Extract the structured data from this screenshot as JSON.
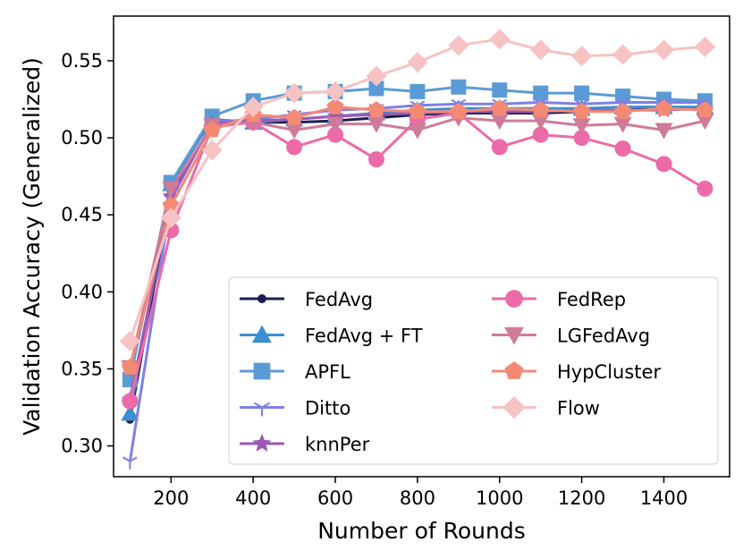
{
  "chart_data": {
    "type": "line",
    "title": "",
    "xlabel": "Number of Rounds",
    "ylabel": "Validation Accuracy (Generalized)",
    "xlim": [
      60,
      1560
    ],
    "ylim": [
      0.28,
      0.579
    ],
    "xticks": [
      200,
      400,
      600,
      800,
      1000,
      1200,
      1400
    ],
    "yticks": [
      0.3,
      0.35,
      0.4,
      0.45,
      0.5,
      0.55
    ],
    "ytick_labels": [
      "0.30",
      "0.35",
      "0.40",
      "0.45",
      "0.50",
      "0.55"
    ],
    "grid": false,
    "legend_position": "lower-right",
    "x": [
      100,
      200,
      300,
      400,
      500,
      600,
      700,
      800,
      900,
      1000,
      1100,
      1200,
      1300,
      1400,
      1500
    ],
    "series": [
      {
        "name": "FedAvg",
        "color": "#1a2050",
        "marker": "circle-small",
        "values": [
          0.317,
          0.465,
          0.508,
          0.51,
          0.51,
          0.511,
          0.513,
          0.515,
          0.516,
          0.516,
          0.516,
          0.517,
          0.518,
          0.519,
          0.52
        ]
      },
      {
        "name": "FedAvg + FT",
        "color": "#3a8fd0",
        "marker": "triangle-up",
        "values": [
          0.321,
          0.47,
          0.512,
          0.51,
          0.512,
          0.514,
          0.516,
          0.518,
          0.519,
          0.519,
          0.519,
          0.519,
          0.52,
          0.52,
          0.52
        ]
      },
      {
        "name": "APFL",
        "color": "#5b9bd5",
        "marker": "square",
        "values": [
          0.343,
          0.471,
          0.514,
          0.524,
          0.529,
          0.53,
          0.532,
          0.53,
          0.533,
          0.531,
          0.529,
          0.529,
          0.527,
          0.525,
          0.524
        ]
      },
      {
        "name": "Ditto",
        "color": "#7f7fe8",
        "marker": "tri-down",
        "values": [
          0.29,
          0.46,
          0.51,
          0.512,
          0.515,
          0.518,
          0.519,
          0.521,
          0.522,
          0.522,
          0.523,
          0.522,
          0.523,
          0.523,
          0.523
        ]
      },
      {
        "name": "knnPer",
        "color": "#9b59b6",
        "marker": "star",
        "values": [
          0.33,
          0.462,
          0.509,
          0.511,
          0.512,
          0.514,
          0.515,
          0.516,
          0.517,
          0.517,
          0.517,
          0.518,
          0.518,
          0.518,
          0.519
        ]
      },
      {
        "name": "FedRep",
        "color": "#ec6aa8",
        "marker": "circle",
        "values": [
          0.329,
          0.44,
          0.507,
          0.51,
          0.494,
          0.502,
          0.486,
          0.512,
          0.516,
          0.494,
          0.502,
          0.5,
          0.493,
          0.483,
          0.467
        ]
      },
      {
        "name": "LGFedAvg",
        "color": "#cf7a98",
        "marker": "triangle-down",
        "values": [
          0.351,
          0.467,
          0.508,
          0.51,
          0.505,
          0.509,
          0.509,
          0.505,
          0.513,
          0.511,
          0.511,
          0.508,
          0.509,
          0.505,
          0.511
        ]
      },
      {
        "name": "HypCluster",
        "color": "#f48a74",
        "marker": "pentagon",
        "values": [
          0.351,
          0.456,
          0.505,
          0.515,
          0.513,
          0.52,
          0.518,
          0.517,
          0.517,
          0.519,
          0.518,
          0.517,
          0.517,
          0.519,
          0.518
        ]
      },
      {
        "name": "Flow",
        "color": "#f6c2c2",
        "marker": "diamond",
        "values": [
          0.368,
          0.448,
          0.492,
          0.52,
          0.529,
          0.53,
          0.54,
          0.549,
          0.56,
          0.564,
          0.557,
          0.553,
          0.554,
          0.557,
          0.559
        ]
      }
    ],
    "legend_columns": [
      [
        "FedAvg",
        "FedAvg + FT",
        "APFL",
        "Ditto",
        "knnPer"
      ],
      [
        "FedRep",
        "LGFedAvg",
        "HypCluster",
        "Flow"
      ]
    ]
  }
}
